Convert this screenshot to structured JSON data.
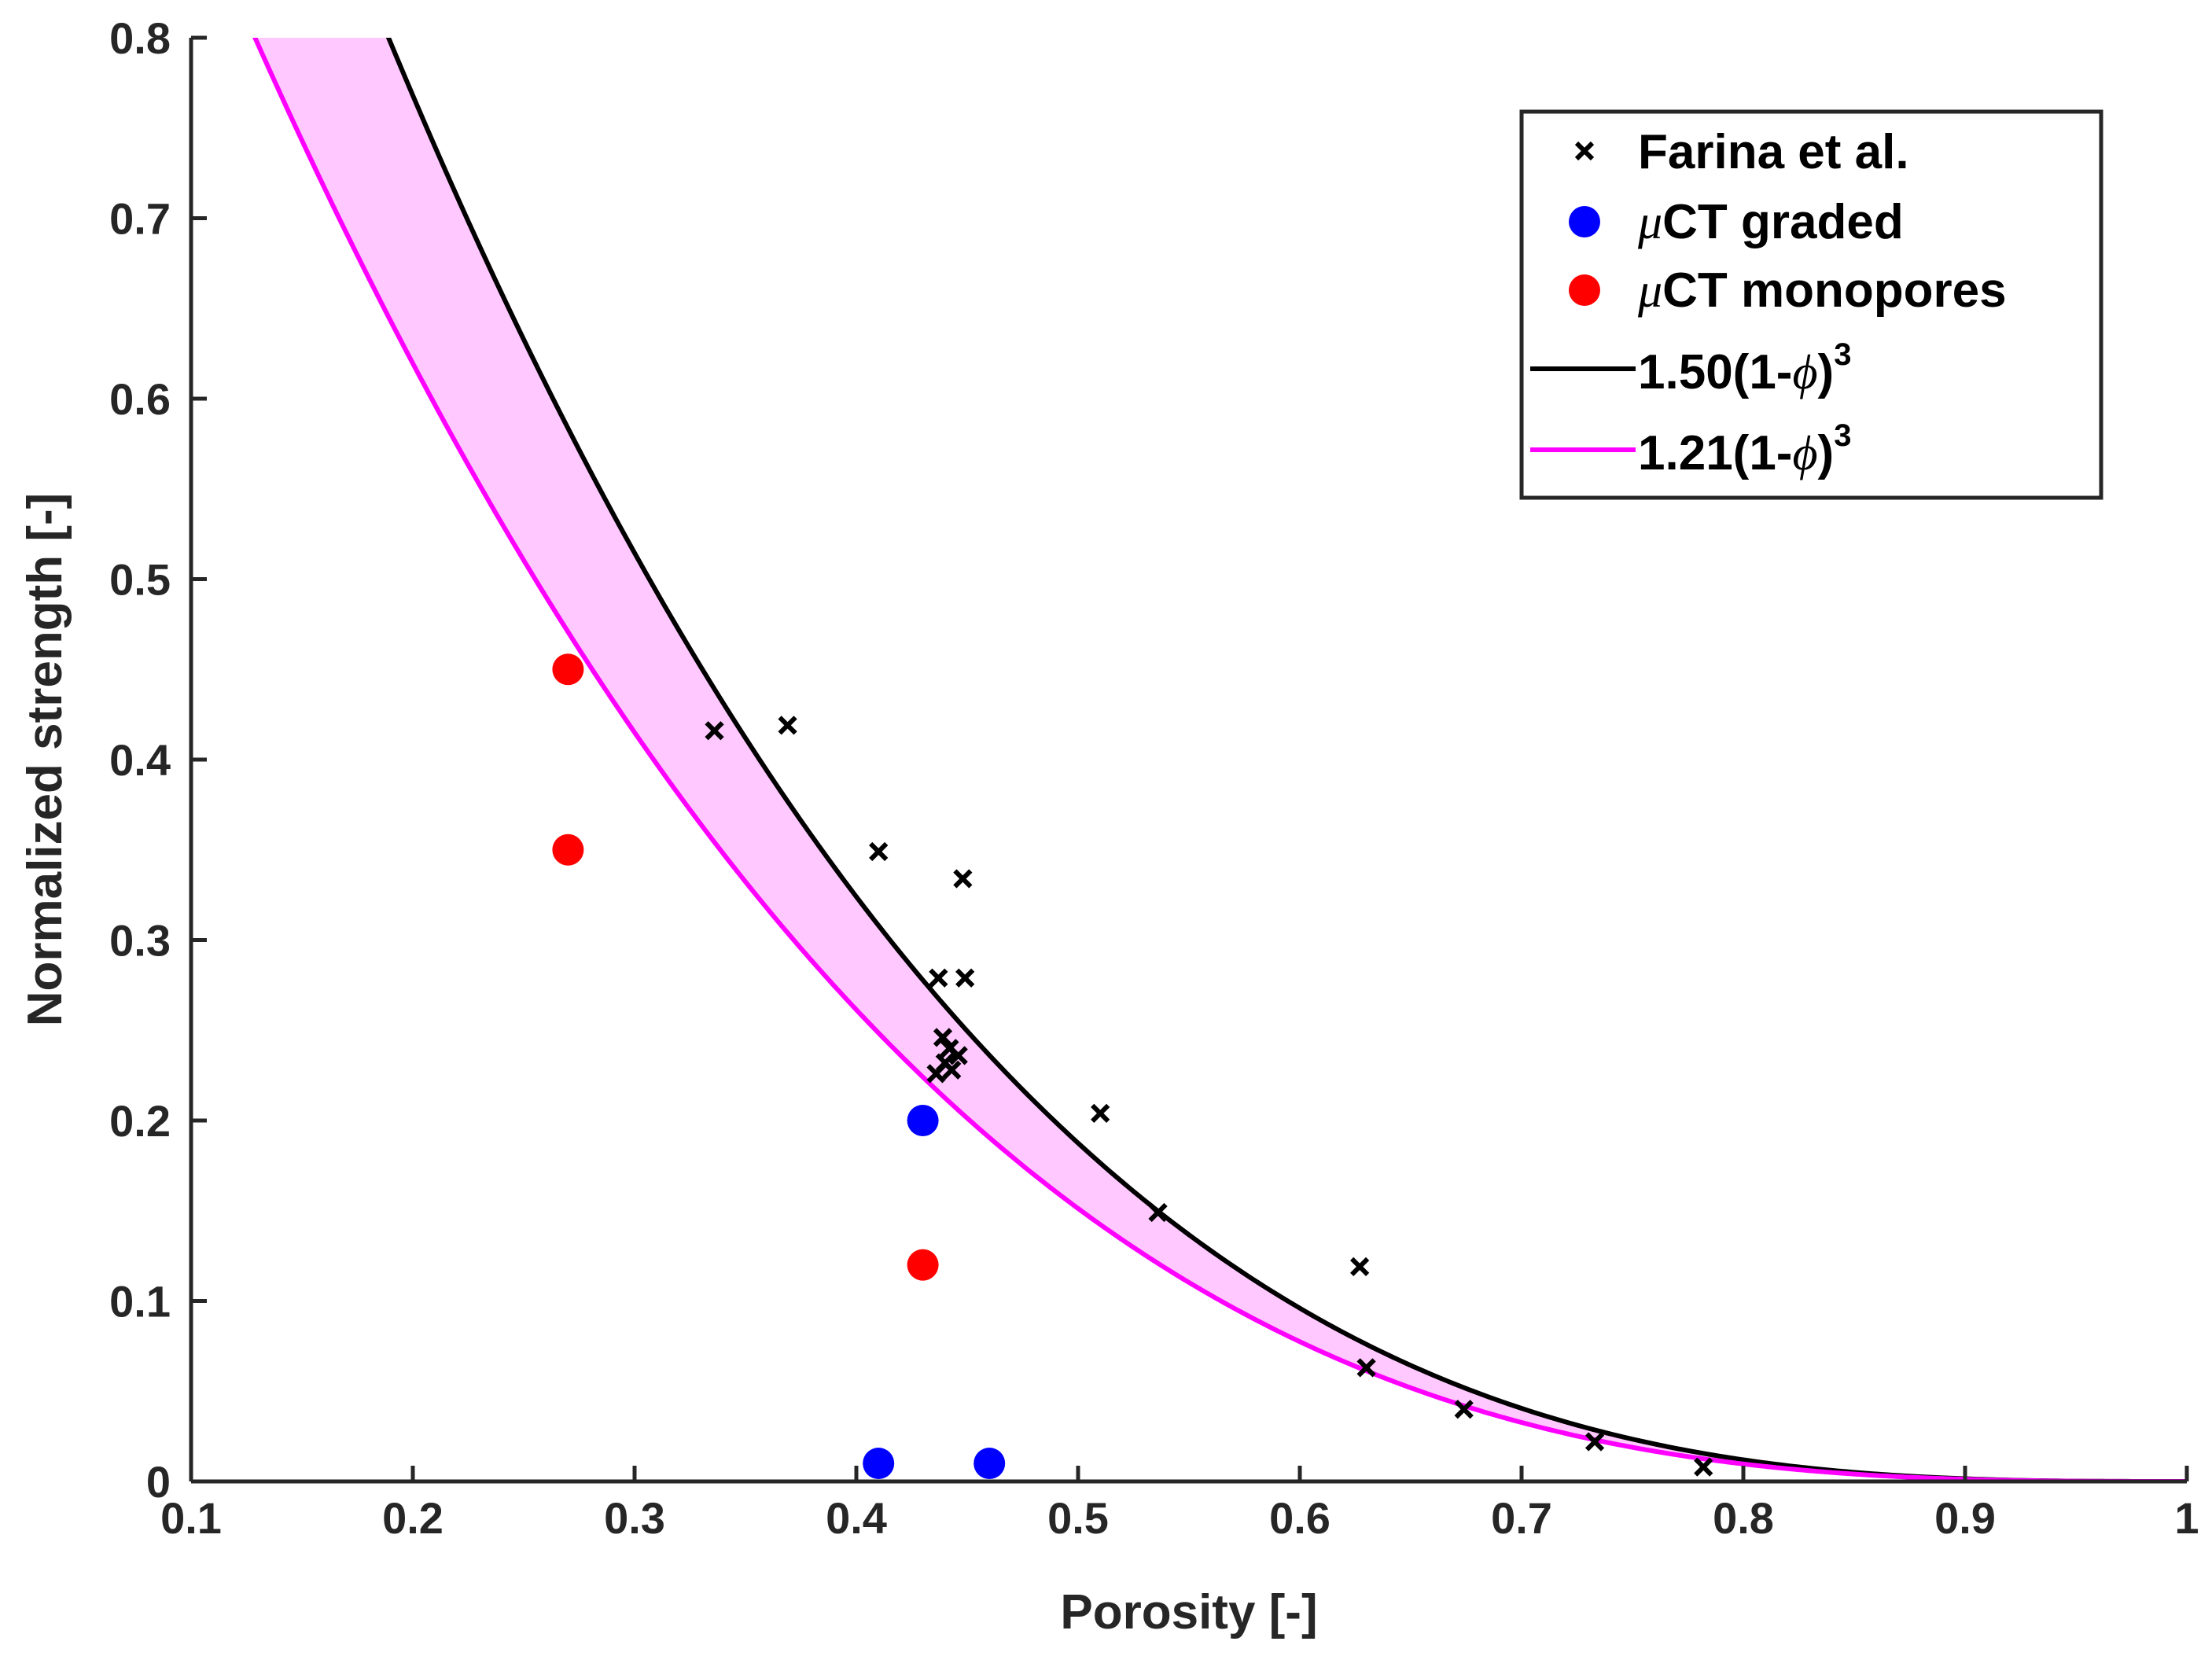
{
  "chart_data": {
    "type": "scatter",
    "xlabel": "Porosity [-]",
    "ylabel": "Normalized strength [-]",
    "xlim": [
      0.1,
      1
    ],
    "ylim": [
      0,
      0.8
    ],
    "xticks": [
      "0.1",
      "0.2",
      "0.3",
      "0.4",
      "0.5",
      "0.6",
      "0.7",
      "0.8",
      "0.9",
      "1"
    ],
    "yticks": [
      "0",
      "0.1",
      "0.2",
      "0.3",
      "0.4",
      "0.5",
      "0.6",
      "0.7",
      "0.8"
    ],
    "legend_position": "top-right",
    "legend": [
      {
        "label": "Farina et al.",
        "marker": "x",
        "color": "#000000"
      },
      {
        "label_prefix": "μ",
        "label_text": "CT graded",
        "marker": "circle",
        "color": "#0000ff"
      },
      {
        "label_prefix": "μ",
        "label_text": "CT monopores",
        "marker": "circle",
        "color": "#ff0000"
      },
      {
        "label_coef": "1.50(1-",
        "label_var": "ϕ",
        "label_close": ")",
        "label_exp": "3",
        "marker": "line",
        "color": "#000000"
      },
      {
        "label_coef": "1.21(1-",
        "label_var": "ϕ",
        "label_close": ")",
        "label_exp": "3",
        "marker": "line",
        "color": "#ff00ff"
      }
    ],
    "series": [
      {
        "name": "Farina et al.",
        "kind": "scatter",
        "marker": "x",
        "color": "#000000",
        "x": [
          0.336,
          0.369,
          0.41,
          0.448,
          0.437,
          0.449,
          0.439,
          0.442,
          0.446,
          0.44,
          0.436,
          0.443,
          0.51,
          0.536,
          0.627,
          0.63,
          0.674,
          0.733,
          0.782
        ],
        "y": [
          0.416,
          0.419,
          0.349,
          0.334,
          0.279,
          0.279,
          0.246,
          0.24,
          0.236,
          0.232,
          0.226,
          0.228,
          0.204,
          0.149,
          0.119,
          0.063,
          0.04,
          0.022,
          0.008
        ]
      },
      {
        "name": "μCT graded",
        "kind": "scatter",
        "marker": "circle",
        "color": "#0000ff",
        "x": [
          0.43,
          0.41,
          0.46
        ],
        "y": [
          0.2,
          0.01,
          0.01
        ]
      },
      {
        "name": "μCT monopores",
        "kind": "scatter",
        "marker": "circle",
        "color": "#ff0000",
        "x": [
          0.27,
          0.27,
          0.43
        ],
        "y": [
          0.45,
          0.35,
          0.12
        ]
      },
      {
        "name": "1.50(1-ϕ)^3",
        "kind": "curve",
        "color": "#000000",
        "coefficient": 1.5,
        "exponent": 3
      },
      {
        "name": "1.21(1-ϕ)^3",
        "kind": "curve",
        "color": "#ff00ff",
        "coefficient": 1.21,
        "exponent": 3
      }
    ],
    "band": {
      "between": [
        "1.50(1-ϕ)^3",
        "1.21(1-ϕ)^3"
      ],
      "fill_color": "#ffc8ff"
    }
  }
}
